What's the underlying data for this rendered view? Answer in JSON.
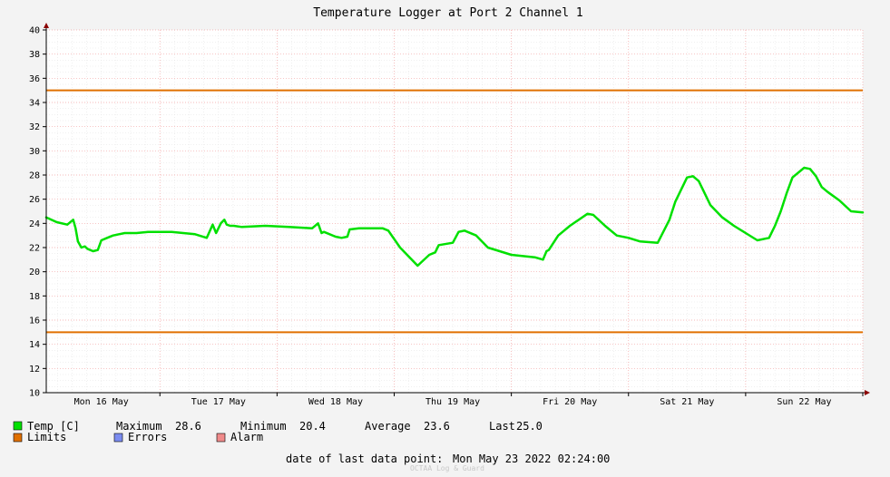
{
  "chart_data": {
    "type": "line",
    "title": "Temperature Logger at Port 2 Channel 1",
    "ylim": [
      10,
      40
    ],
    "yticks": [
      10,
      12,
      14,
      16,
      18,
      20,
      22,
      24,
      26,
      28,
      30,
      32,
      34,
      36,
      38,
      40
    ],
    "xlim": [
      -0.47,
      6.5
    ],
    "x_major_ticks": [
      0.5,
      1.5,
      2.5,
      3.5,
      4.5,
      5.5,
      6.5
    ],
    "x_labels": [
      {
        "x": 0,
        "label": "Mon 16 May"
      },
      {
        "x": 1,
        "label": "Tue 17 May"
      },
      {
        "x": 2,
        "label": "Wed 18 May"
      },
      {
        "x": 3,
        "label": "Thu 19 May"
      },
      {
        "x": 4,
        "label": "Fri 20 May"
      },
      {
        "x": 5,
        "label": "Sat 21 May"
      },
      {
        "x": 6,
        "label": "Sun 22 May"
      }
    ],
    "limits": {
      "name": "Limits",
      "upper": 35,
      "lower": 15,
      "color": "#e07000"
    },
    "series": [
      {
        "name": "Temp [C]",
        "color": "#00e000",
        "x": [
          -0.47,
          -0.38,
          -0.29,
          -0.24,
          -0.22,
          -0.2,
          -0.17,
          -0.14,
          -0.12,
          -0.07,
          -0.03,
          0.0,
          0.05,
          0.1,
          0.15,
          0.2,
          0.3,
          0.4,
          0.6,
          0.8,
          0.9,
          0.95,
          0.98,
          1.02,
          1.05,
          1.07,
          1.1,
          1.13,
          1.2,
          1.4,
          1.6,
          1.8,
          1.85,
          1.88,
          1.9,
          2.0,
          2.05,
          2.1,
          2.12,
          2.2,
          2.4,
          2.45,
          2.55,
          2.7,
          2.8,
          2.85,
          2.88,
          3.0,
          3.05,
          3.1,
          3.2,
          3.3,
          3.4,
          3.5,
          3.7,
          3.77,
          3.8,
          3.82,
          3.9,
          4.0,
          4.15,
          4.2,
          4.3,
          4.4,
          4.5,
          4.6,
          4.75,
          4.85,
          4.9,
          5.0,
          5.05,
          5.1,
          5.2,
          5.3,
          5.4,
          5.5,
          5.6,
          5.7,
          5.75,
          5.8,
          5.85,
          5.9,
          6.0,
          6.05,
          6.1,
          6.15,
          6.2,
          6.3,
          6.4,
          6.5
        ],
        "y": [
          24.5,
          24.1,
          23.9,
          24.3,
          23.6,
          22.5,
          22.0,
          22.1,
          21.9,
          21.7,
          21.8,
          22.6,
          22.8,
          23.0,
          23.1,
          23.2,
          23.2,
          23.3,
          23.3,
          23.1,
          22.8,
          23.9,
          23.2,
          24.0,
          24.3,
          23.9,
          23.8,
          23.8,
          23.7,
          23.8,
          23.7,
          23.6,
          24.0,
          23.2,
          23.3,
          22.9,
          22.8,
          22.9,
          23.5,
          23.6,
          23.6,
          23.4,
          22.0,
          20.5,
          21.4,
          21.6,
          22.2,
          22.4,
          23.3,
          23.4,
          23.0,
          22.0,
          21.7,
          21.4,
          21.2,
          21.0,
          21.7,
          21.8,
          23.0,
          23.8,
          24.8,
          24.7,
          23.8,
          23.0,
          22.8,
          22.5,
          22.4,
          24.3,
          25.8,
          27.8,
          27.9,
          27.5,
          25.5,
          24.5,
          23.8,
          23.2,
          22.6,
          22.8,
          23.8,
          25.0,
          26.5,
          27.8,
          28.6,
          28.5,
          27.9,
          27.0,
          26.6,
          25.9,
          25.0,
          24.9
        ]
      }
    ]
  },
  "legend": {
    "series_label": "Temp [C]",
    "max_label": "Maximum",
    "max_value": "28.6",
    "min_label": "Minimum",
    "min_value": "20.4",
    "avg_label": "Average",
    "avg_value": "23.6",
    "last_label": "Last",
    "last_value": "25.0",
    "limits_label": "Limits",
    "errors_label": "Errors",
    "alarm_label": "Alarm",
    "temp_color": "#00e000",
    "limits_color": "#e07000",
    "errors_color": "#7b8cf0",
    "alarm_color": "#f08a8a"
  },
  "footer": {
    "last_point_label": "date of last data point:",
    "last_point_value": "Mon May 23 2022 02:24:00",
    "watermark": "OCTAA Log & Guard"
  }
}
